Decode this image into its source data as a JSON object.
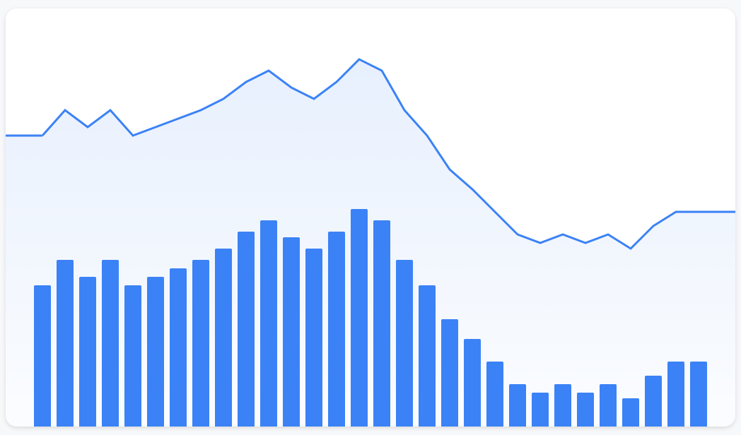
{
  "chart_data": {
    "type": "combo",
    "categories": [
      null,
      null,
      null,
      null,
      null,
      null,
      null,
      null,
      null,
      null,
      null,
      null,
      null,
      null,
      null,
      null,
      null,
      null,
      null,
      null,
      null,
      null,
      null,
      null,
      null,
      null,
      null,
      null,
      null,
      null
    ],
    "series": [
      {
        "type": "line",
        "color": "#3b82f6",
        "values": [
          103,
          112,
          106,
          112,
          103,
          106,
          109,
          112,
          116,
          122,
          126,
          120,
          116,
          122,
          130,
          126,
          112,
          103,
          91,
          84,
          76,
          68,
          65,
          68,
          65,
          68,
          63,
          71,
          76,
          76
        ]
      },
      {
        "type": "bar",
        "color": "#3b82f6",
        "values": [
          50,
          59,
          53,
          59,
          50,
          53,
          56,
          59,
          63,
          69,
          73,
          67,
          63,
          69,
          77,
          73,
          59,
          50,
          38,
          31,
          23,
          15,
          12,
          15,
          12,
          15,
          10,
          18,
          23,
          23
        ]
      }
    ],
    "ylim": [
      0,
      150
    ]
  }
}
